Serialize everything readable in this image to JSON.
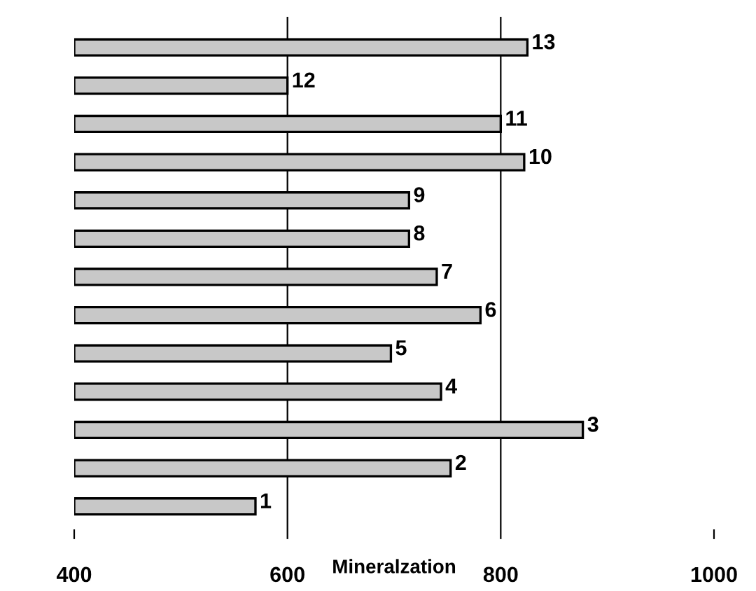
{
  "chart_data": {
    "type": "bar",
    "orientation": "horizontal",
    "xlabel": "Mineralzation",
    "categories": [
      "13",
      "12",
      "11",
      "10",
      "9",
      "8",
      "7",
      "6",
      "5",
      "4",
      "3",
      "2",
      "1"
    ],
    "values": [
      825,
      600,
      800,
      822,
      714,
      714,
      740,
      781,
      697,
      744,
      877,
      753,
      570
    ],
    "color": "#c8c8c8",
    "xlim": [
      400,
      1000
    ],
    "xticks": [
      400,
      600,
      800,
      1000
    ],
    "grid": "x"
  }
}
